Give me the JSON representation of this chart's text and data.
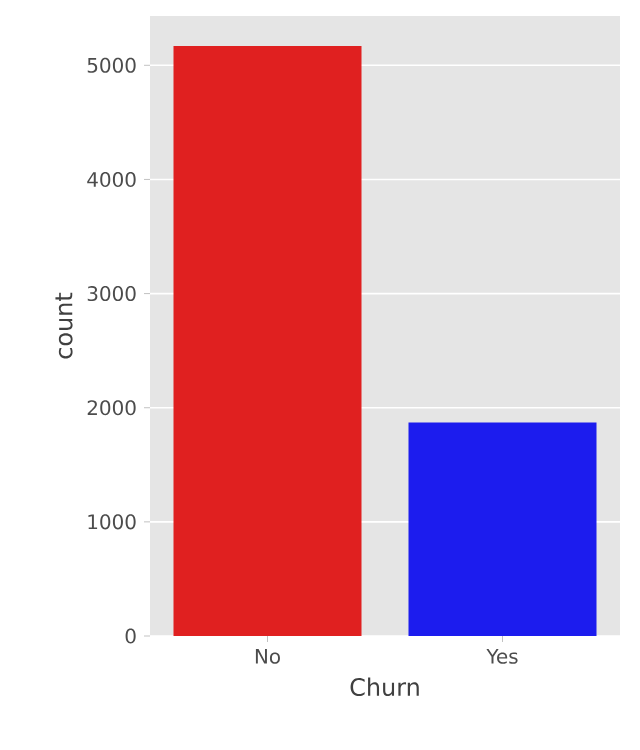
{
  "chart_data": {
    "type": "bar",
    "xlabel": "Churn",
    "ylabel": "count",
    "categories": [
      "No",
      "Yes"
    ],
    "values": [
      5170,
      1870
    ],
    "colors": [
      "#e02020",
      "#1c1cee"
    ],
    "ylim": [
      0,
      5432
    ],
    "yticks": [
      0,
      1000,
      2000,
      3000,
      4000,
      5000
    ],
    "grid": "y"
  }
}
